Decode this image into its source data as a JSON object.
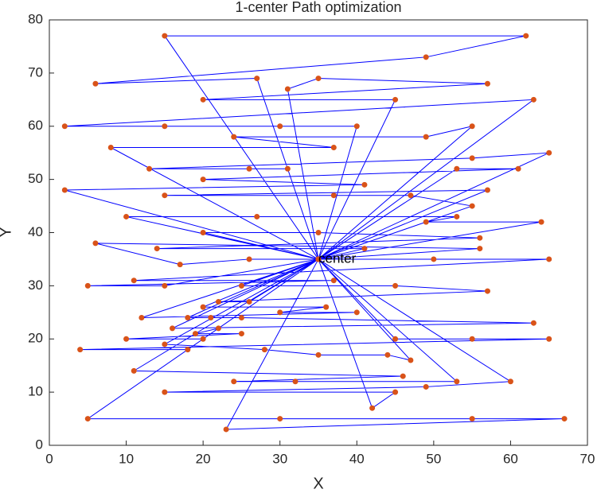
{
  "chart_data": {
    "type": "path",
    "title": "1-center Path optimization",
    "xlabel": "X",
    "ylabel": "Y",
    "annotation": {
      "text": "center",
      "x": 35,
      "y": 35
    },
    "line_color": "#0000ff",
    "marker_color": "#d95319",
    "xlim": [
      0,
      70
    ],
    "xticks": [
      0,
      10,
      20,
      30,
      40,
      50,
      60,
      70
    ],
    "ylim": [
      0,
      80
    ],
    "yticks": [
      0,
      10,
      20,
      30,
      40,
      50,
      60,
      70,
      80
    ],
    "x": [
      35,
      15,
      62,
      49,
      6,
      27,
      35,
      31,
      35,
      57,
      20,
      45,
      35,
      63,
      2,
      15,
      30,
      40,
      35,
      55,
      49,
      24,
      37,
      8,
      35,
      65,
      55,
      13,
      26,
      31,
      35,
      53,
      61,
      20,
      41,
      2,
      35,
      57,
      15,
      37,
      47,
      55,
      35,
      10,
      27,
      53,
      49,
      64,
      35,
      20,
      35,
      56,
      14,
      41,
      35,
      56,
      6,
      17,
      26,
      50,
      35,
      65,
      11,
      37,
      5,
      15,
      35,
      25,
      45,
      57,
      22,
      26,
      35,
      20,
      36,
      30,
      40,
      12,
      35,
      18,
      21,
      25,
      63,
      16,
      35,
      22,
      19,
      25,
      10,
      20,
      35,
      45,
      55,
      65,
      4,
      18,
      35,
      15,
      28,
      35,
      44,
      47,
      35,
      11,
      46,
      24,
      32,
      53,
      35,
      60,
      49,
      15,
      45,
      42,
      35,
      5,
      30,
      55,
      67,
      23,
      35
    ],
    "y": [
      35,
      77,
      77,
      73,
      68,
      69,
      35,
      67,
      69,
      68,
      65,
      65,
      35,
      65,
      60,
      60,
      60,
      60,
      35,
      60,
      58,
      58,
      56,
      56,
      35,
      55,
      54,
      52,
      52,
      52,
      35,
      52,
      52,
      50,
      49,
      48,
      35,
      48,
      47,
      47,
      47,
      45,
      35,
      43,
      43,
      43,
      42,
      42,
      35,
      40,
      40,
      39,
      37,
      37,
      35,
      37,
      38,
      34,
      35,
      35,
      35,
      35,
      31,
      31,
      30,
      30,
      35,
      30,
      30,
      29,
      27,
      27,
      35,
      26,
      26,
      25,
      25,
      24,
      35,
      24,
      24,
      24,
      23,
      22,
      35,
      22,
      21,
      21,
      20,
      20,
      35,
      20,
      20,
      20,
      18,
      18,
      35,
      19,
      18,
      17,
      17,
      16,
      35,
      14,
      13,
      12,
      12,
      12,
      35,
      12,
      11,
      10,
      10,
      7,
      35,
      5,
      5,
      5,
      5,
      3,
      35
    ]
  }
}
